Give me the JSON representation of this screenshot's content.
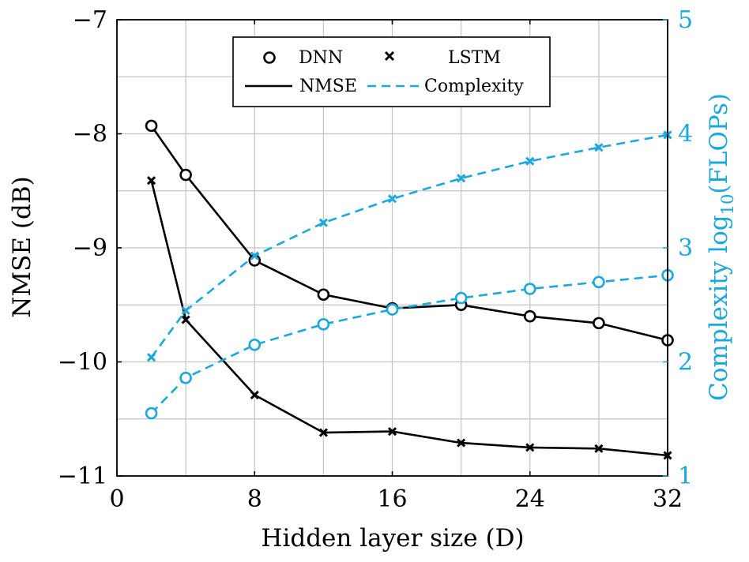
{
  "chart_data": {
    "type": "line",
    "xlabel": "Hidden layer size (D)",
    "ylabel_left": "NMSE (dB)",
    "ylabel_right": "Complexity log",
    "ylabel_right_sub": "10",
    "ylabel_right_tail": "(FLOPs)",
    "xlim": [
      0,
      32
    ],
    "ylim_left": [
      -11,
      -7
    ],
    "ylim_right": [
      1,
      5
    ],
    "x_ticks": [
      "0",
      "8",
      "16",
      "24",
      "32"
    ],
    "y_left_ticks": [
      "−11",
      "−10",
      "−9",
      "−8",
      "−7"
    ],
    "y_right_ticks": [
      "1",
      "2",
      "3",
      "4",
      "5"
    ],
    "grid": true,
    "legend": {
      "position": "top-center",
      "entries": [
        "DNN",
        "LSTM",
        "NMSE",
        "Complexity"
      ]
    },
    "colors": {
      "nmse": "#000000",
      "complexity": "#1BA8DC"
    },
    "x": [
      2,
      4,
      8,
      12,
      16,
      20,
      24,
      28,
      32
    ],
    "series": [
      {
        "name": "DNN",
        "metric": "NMSE",
        "axis": "left",
        "marker": "circle",
        "style": "solid",
        "values": [
          -7.93,
          -8.36,
          -9.11,
          -9.41,
          -9.53,
          -9.5,
          -9.6,
          -9.66,
          -9.81
        ]
      },
      {
        "name": "LSTM",
        "metric": "NMSE",
        "axis": "left",
        "marker": "cross",
        "style": "solid",
        "values": [
          -8.41,
          -9.63,
          -10.29,
          -10.62,
          -10.61,
          -10.71,
          -10.75,
          -10.76,
          -10.82
        ]
      },
      {
        "name": "DNN",
        "metric": "Complexity",
        "axis": "right",
        "marker": "circle",
        "style": "dashed",
        "values": [
          1.55,
          1.86,
          2.15,
          2.33,
          2.46,
          2.56,
          2.64,
          2.7,
          2.76
        ]
      },
      {
        "name": "LSTM",
        "metric": "Complexity",
        "axis": "right",
        "marker": "cross",
        "style": "dashed",
        "values": [
          2.04,
          2.45,
          2.93,
          3.22,
          3.43,
          3.61,
          3.76,
          3.88,
          3.99
        ]
      }
    ]
  }
}
